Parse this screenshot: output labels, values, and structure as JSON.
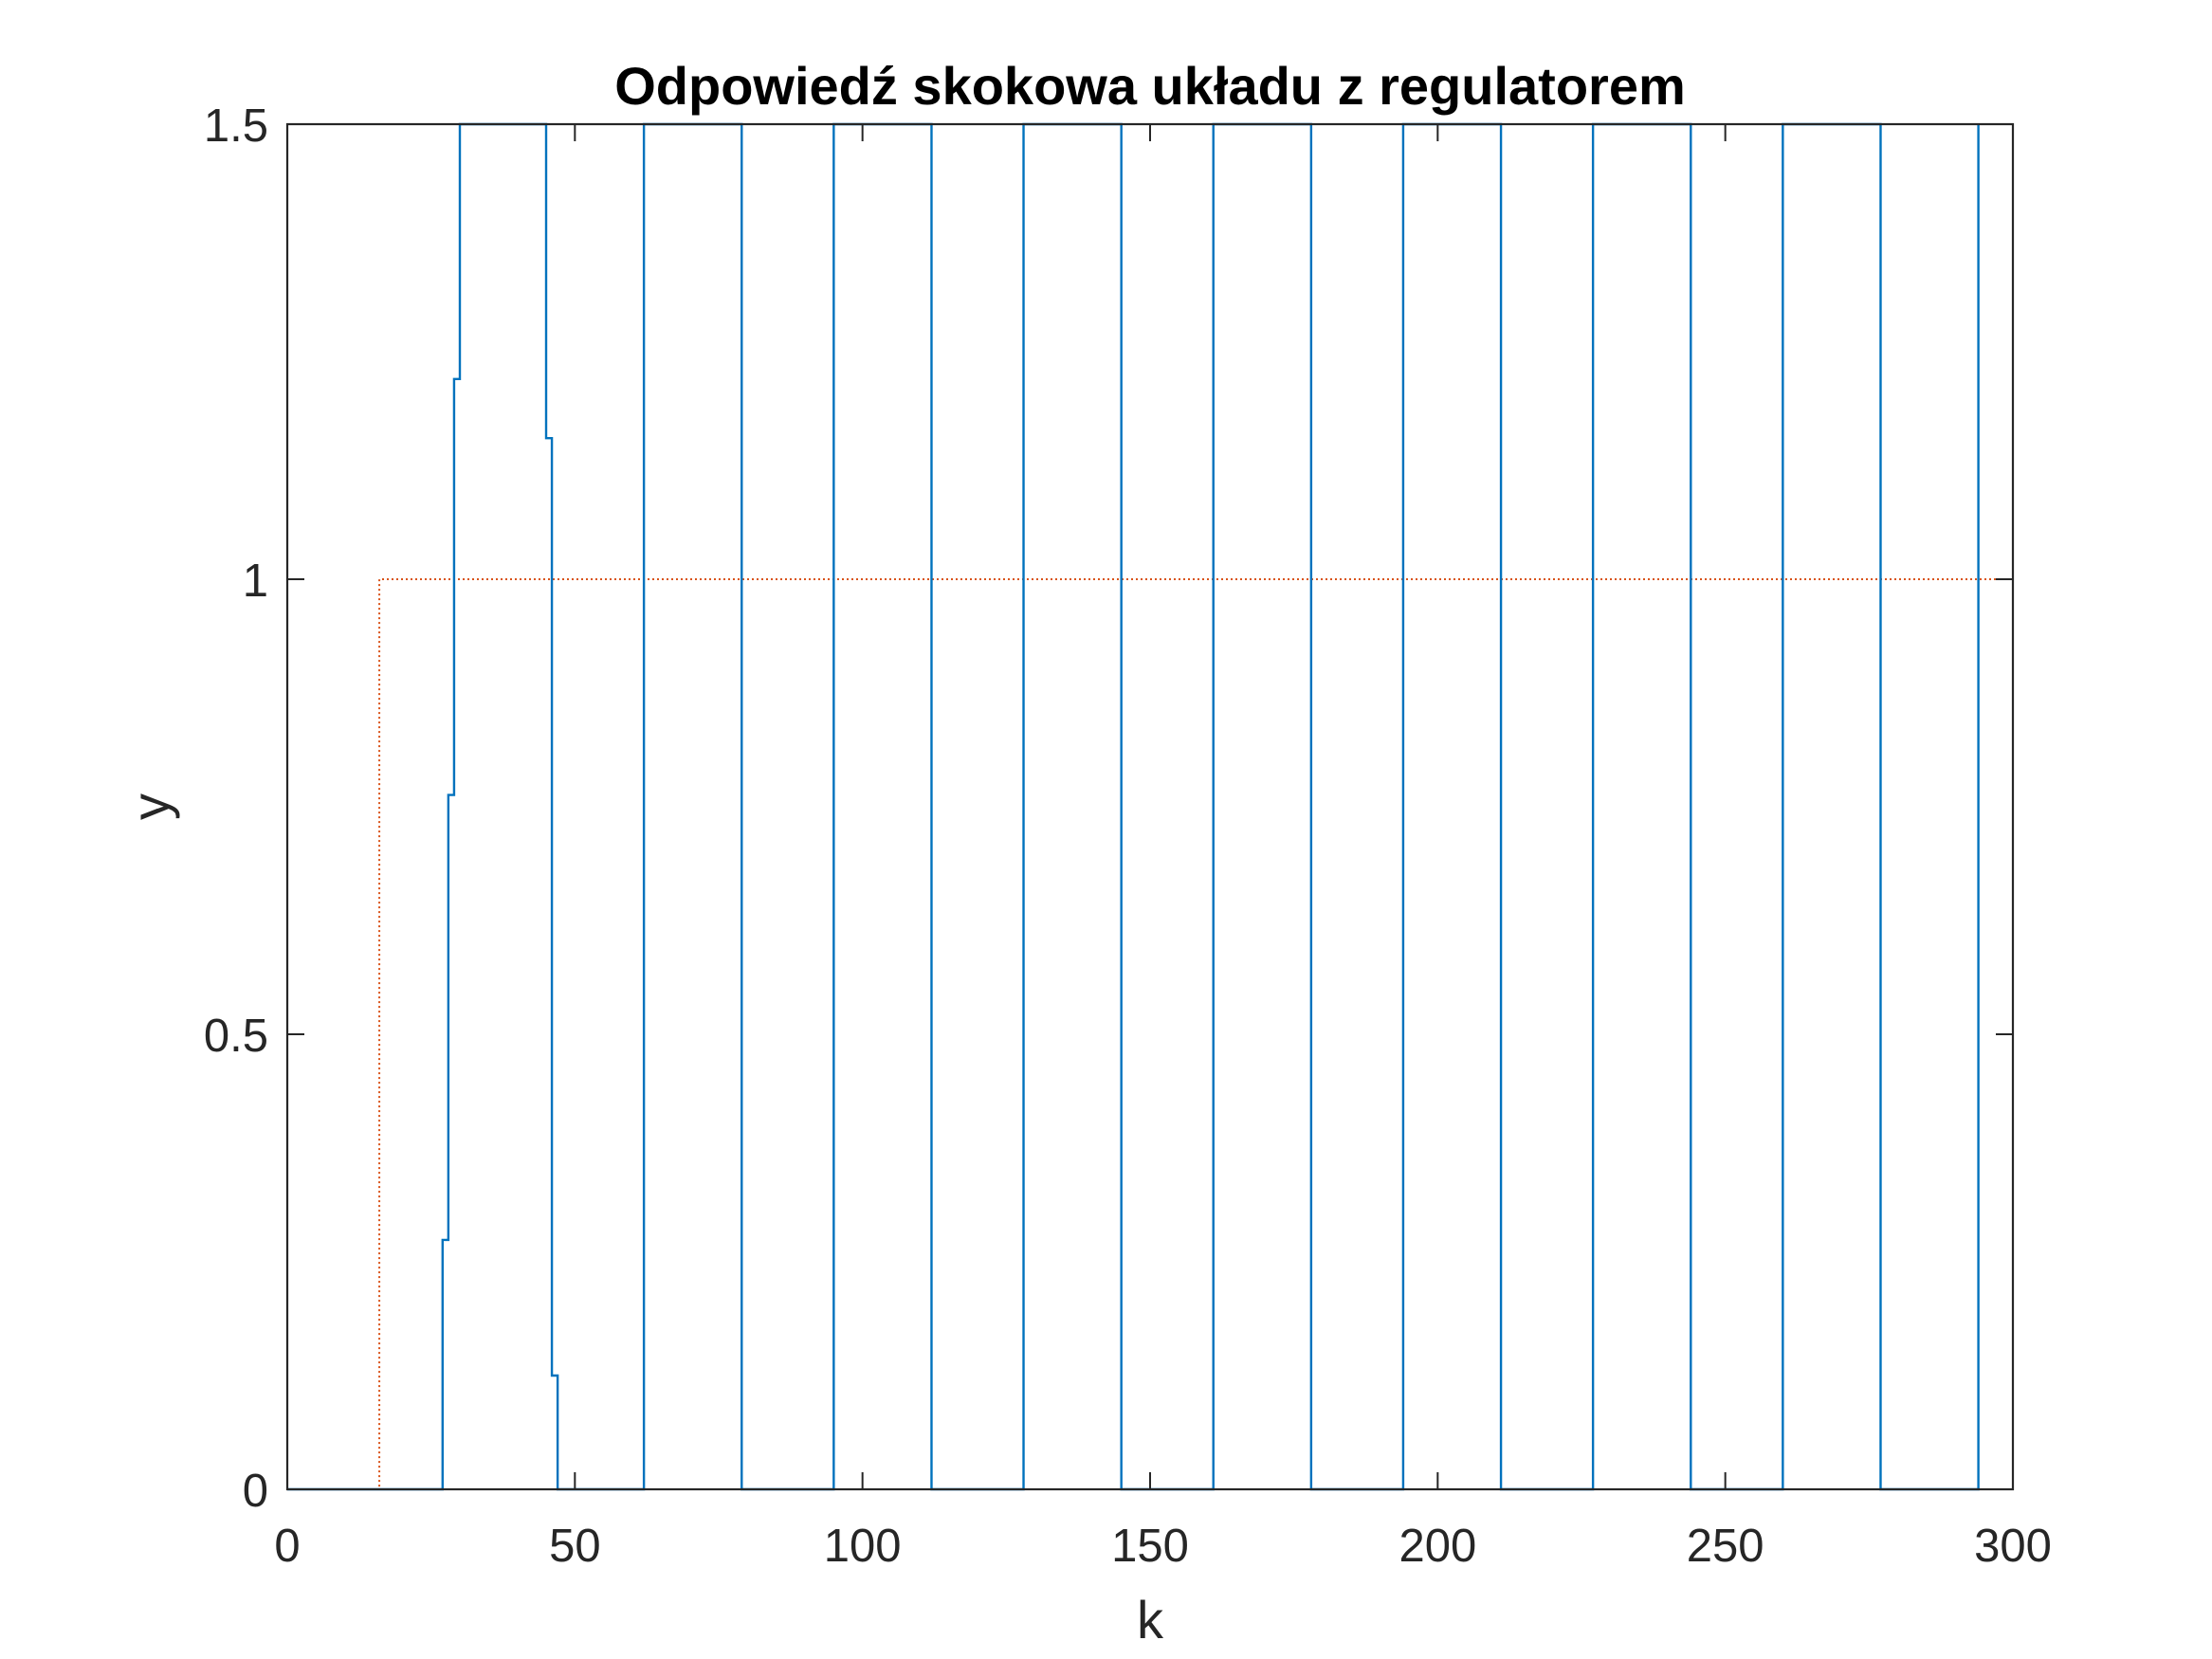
{
  "chart_data": {
    "type": "line",
    "title": "Odpowiedź skokowa układu z regulatorem",
    "xlabel": "k",
    "ylabel": "y",
    "xlim": [
      0,
      300
    ],
    "ylim": [
      0,
      1.5
    ],
    "x_ticks": [
      "0",
      "50",
      "100",
      "150",
      "200",
      "250",
      "300"
    ],
    "y_ticks": [
      "0",
      "0.5",
      "1",
      "1.5"
    ],
    "grid": false,
    "series": [
      {
        "style": "step",
        "color": "#0072BD",
        "line": "solid",
        "points": [
          [
            0,
            0
          ],
          [
            27,
            0
          ],
          [
            27,
            0.274
          ],
          [
            28,
            0.274
          ],
          [
            28,
            0.763
          ],
          [
            29,
            0.763
          ],
          [
            29,
            1.22
          ],
          [
            30,
            1.22
          ],
          [
            30,
            1.5
          ],
          [
            45,
            1.5
          ],
          [
            45,
            1.155
          ],
          [
            46,
            1.155
          ],
          [
            46,
            0.125
          ],
          [
            47,
            0.125
          ],
          [
            47,
            0
          ],
          [
            62,
            0
          ],
          [
            62,
            1.5
          ],
          [
            79,
            1.5
          ],
          [
            79,
            0
          ],
          [
            95,
            0
          ],
          [
            95,
            1.5
          ],
          [
            112,
            1.5
          ],
          [
            112,
            0
          ],
          [
            128,
            0
          ],
          [
            128,
            1.5
          ],
          [
            145,
            1.5
          ],
          [
            145,
            0
          ],
          [
            161,
            0
          ],
          [
            161,
            1.5
          ],
          [
            178,
            1.5
          ],
          [
            178,
            0
          ],
          [
            194,
            0
          ],
          [
            194,
            1.5
          ],
          [
            211,
            1.5
          ],
          [
            211,
            0
          ],
          [
            227,
            0
          ],
          [
            227,
            1.5
          ],
          [
            244,
            1.5
          ],
          [
            244,
            0
          ],
          [
            260,
            0
          ],
          [
            260,
            1.5
          ],
          [
            277,
            1.5
          ],
          [
            277,
            0
          ],
          [
            294,
            0
          ],
          [
            294,
            1.5
          ]
        ]
      },
      {
        "style": "step",
        "color": "#D95319",
        "line": "dotted",
        "points": [
          [
            0,
            0
          ],
          [
            16,
            0
          ],
          [
            16,
            1
          ],
          [
            300,
            1
          ]
        ]
      }
    ]
  }
}
